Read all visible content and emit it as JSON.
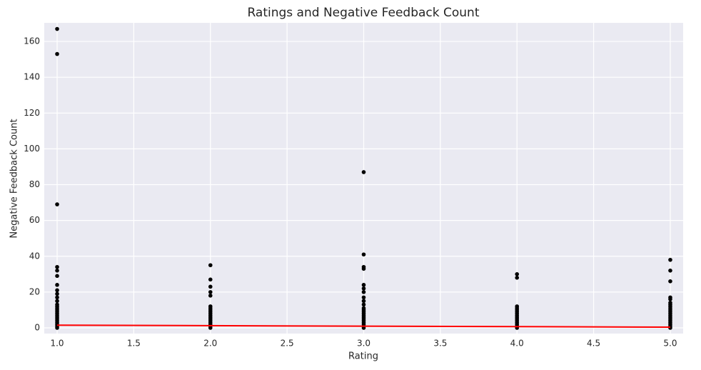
{
  "chart_data": {
    "type": "scatter",
    "title": "Ratings and Negative Feedback Count",
    "x_label": "Rating",
    "y_label": "Negative Feedback Count",
    "xlim": [
      0.916,
      5.084
    ],
    "ylim": [
      -3.2,
      170.4
    ],
    "xticks": [
      {
        "value": 1,
        "label": "1.0"
      },
      1.5,
      {
        "value": 2,
        "label": "2.0"
      },
      2.5,
      {
        "value": 3,
        "label": "3.0"
      },
      3.5,
      {
        "value": 4,
        "label": "4.0"
      },
      4.5,
      {
        "value": 5,
        "label": "5.0"
      }
    ],
    "yticks": [
      0,
      20,
      40,
      60,
      80,
      100,
      120,
      140,
      160
    ],
    "grid": true,
    "background": "#eaeaf2",
    "series": [
      {
        "type": "scatter",
        "color": "#000000",
        "x": [
          1,
          1,
          1,
          1,
          1,
          1,
          1,
          1,
          1,
          1,
          1,
          1,
          1,
          1,
          1,
          1,
          1,
          1,
          1,
          1,
          1,
          1,
          1,
          1,
          1,
          2,
          2,
          2,
          2,
          2,
          2,
          2,
          2,
          2,
          2,
          2,
          2,
          2,
          2,
          2,
          2,
          2,
          2,
          3,
          3,
          3,
          3,
          3,
          3,
          3,
          3,
          3,
          3,
          3,
          3,
          3,
          3,
          3,
          3,
          3,
          3,
          3,
          3,
          3,
          3,
          4,
          4,
          4,
          4,
          4,
          4,
          4,
          4,
          4,
          4,
          4,
          4,
          4,
          4,
          4,
          5,
          5,
          5,
          5,
          5,
          5,
          5,
          5,
          5,
          5,
          5,
          5,
          5,
          5,
          5,
          5,
          5,
          5,
          5,
          5
        ],
        "y": [
          167,
          153,
          69,
          34,
          32,
          29,
          24,
          21,
          19,
          17,
          15,
          13,
          12,
          11,
          10,
          9,
          8,
          7,
          6,
          5,
          4,
          3,
          2,
          1,
          0,
          35,
          27,
          23,
          20,
          18,
          12,
          11,
          10,
          9,
          8,
          7,
          6,
          5,
          4,
          3,
          2,
          1,
          0,
          87,
          41,
          34,
          33,
          24,
          22,
          20,
          17,
          15,
          13,
          11,
          10,
          9,
          8,
          7,
          6,
          5,
          4,
          3,
          2,
          1,
          0,
          30,
          28,
          12,
          11,
          10,
          9,
          8,
          7,
          6,
          5,
          4,
          3,
          2,
          1,
          0,
          38,
          32,
          26,
          17,
          16,
          14,
          13,
          12,
          11,
          10,
          9,
          8,
          7,
          6,
          5,
          4,
          3,
          2,
          1,
          0
        ]
      },
      {
        "type": "line",
        "color": "#ff0000",
        "x": [
          1,
          5
        ],
        "y": [
          1.5,
          0.4
        ]
      }
    ]
  }
}
